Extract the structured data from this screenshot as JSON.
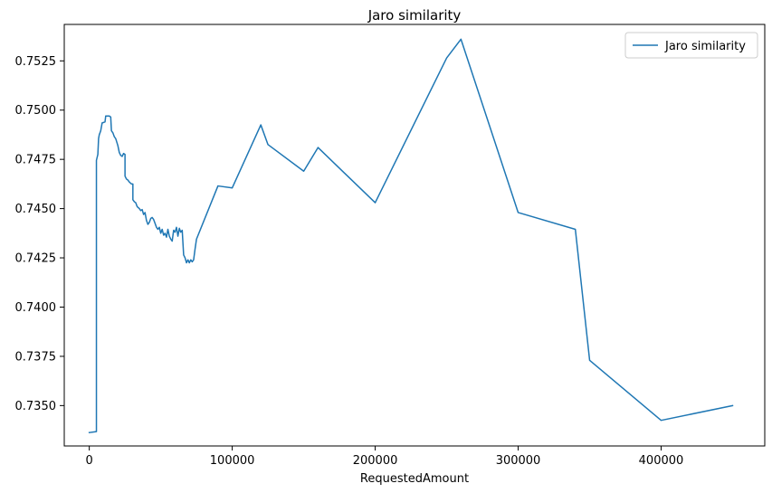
{
  "chart_data": {
    "type": "line",
    "title": "Jaro similarity",
    "xlabel": "RequestedAmount",
    "ylabel": "",
    "xlim": [
      -17500,
      472500
    ],
    "ylim": [
      0.73295,
      0.75435
    ],
    "x_ticks": [
      0,
      100000,
      200000,
      300000,
      400000
    ],
    "x_tick_labels": [
      "0",
      "100000",
      "200000",
      "300000",
      "400000"
    ],
    "y_ticks": [
      0.735,
      0.7375,
      0.74,
      0.7425,
      0.745,
      0.7475,
      0.75,
      0.7525
    ],
    "y_tick_labels": [
      "0.7350",
      "0.7375",
      "0.7400",
      "0.7425",
      "0.7450",
      "0.7475",
      "0.7500",
      "0.7525"
    ],
    "grid": false,
    "legend": {
      "placement": "top-right"
    },
    "series": [
      {
        "name": "Jaro similarity",
        "color": "#1f77b4",
        "points": [
          [
            0,
            0.73363
          ],
          [
            5000,
            0.73368
          ],
          [
            5000,
            0.74745
          ],
          [
            6000,
            0.74775
          ],
          [
            6500,
            0.74855
          ],
          [
            7000,
            0.74875
          ],
          [
            8000,
            0.74895
          ],
          [
            9000,
            0.74935
          ],
          [
            11000,
            0.7494
          ],
          [
            11500,
            0.7497
          ],
          [
            14000,
            0.7497
          ],
          [
            15000,
            0.74965
          ],
          [
            15500,
            0.74895
          ],
          [
            16500,
            0.74885
          ],
          [
            17500,
            0.74865
          ],
          [
            18500,
            0.74855
          ],
          [
            20000,
            0.7482
          ],
          [
            21000,
            0.74785
          ],
          [
            22000,
            0.7477
          ],
          [
            23000,
            0.74765
          ],
          [
            24000,
            0.7478
          ],
          [
            25000,
            0.74775
          ],
          [
            25000,
            0.74665
          ],
          [
            26000,
            0.7465
          ],
          [
            27000,
            0.74645
          ],
          [
            28000,
            0.74635
          ],
          [
            29500,
            0.74625
          ],
          [
            30500,
            0.74625
          ],
          [
            30500,
            0.74545
          ],
          [
            31500,
            0.74535
          ],
          [
            32500,
            0.7453
          ],
          [
            33500,
            0.7451
          ],
          [
            35000,
            0.745
          ],
          [
            36000,
            0.7449
          ],
          [
            37000,
            0.74495
          ],
          [
            38000,
            0.7447
          ],
          [
            39000,
            0.7448
          ],
          [
            40000,
            0.7444
          ],
          [
            41000,
            0.7442
          ],
          [
            42000,
            0.7443
          ],
          [
            43000,
            0.7445
          ],
          [
            44000,
            0.74455
          ],
          [
            45000,
            0.74445
          ],
          [
            46000,
            0.74425
          ],
          [
            47000,
            0.74405
          ],
          [
            48000,
            0.74395
          ],
          [
            49000,
            0.74405
          ],
          [
            50000,
            0.74375
          ],
          [
            51000,
            0.74395
          ],
          [
            52000,
            0.74365
          ],
          [
            53000,
            0.74375
          ],
          [
            54000,
            0.74355
          ],
          [
            55000,
            0.74395
          ],
          [
            56000,
            0.7436
          ],
          [
            57000,
            0.74345
          ],
          [
            58000,
            0.74335
          ],
          [
            59000,
            0.7439
          ],
          [
            60000,
            0.7438
          ],
          [
            61000,
            0.74405
          ],
          [
            62000,
            0.7436
          ],
          [
            63000,
            0.744
          ],
          [
            64000,
            0.7438
          ],
          [
            65000,
            0.7439
          ],
          [
            66000,
            0.74265
          ],
          [
            67000,
            0.7425
          ],
          [
            68000,
            0.74225
          ],
          [
            69000,
            0.7424
          ],
          [
            70000,
            0.74225
          ],
          [
            71000,
            0.7424
          ],
          [
            72000,
            0.7423
          ],
          [
            73000,
            0.7424
          ],
          [
            74000,
            0.74295
          ],
          [
            75000,
            0.74345
          ],
          [
            90000,
            0.74615
          ],
          [
            100000,
            0.74605
          ],
          [
            120000,
            0.74925
          ],
          [
            125000,
            0.74825
          ],
          [
            150000,
            0.7469
          ],
          [
            160000,
            0.7481
          ],
          [
            200000,
            0.7453
          ],
          [
            250000,
            0.75265
          ],
          [
            260000,
            0.7536
          ],
          [
            300000,
            0.7448
          ],
          [
            340000,
            0.74395
          ],
          [
            350000,
            0.7373
          ],
          [
            400000,
            0.73425
          ],
          [
            450000,
            0.735
          ]
        ]
      }
    ]
  }
}
